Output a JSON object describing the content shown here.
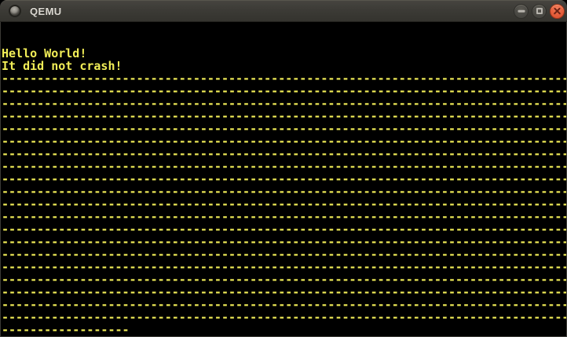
{
  "window": {
    "title": "QEMU",
    "controls": [
      {
        "name": "minimize",
        "icon": "minimize-icon"
      },
      {
        "name": "maximize",
        "icon": "maximize-icon"
      },
      {
        "name": "close",
        "icon": "close-icon"
      }
    ]
  },
  "colors": {
    "titlebar_bg": "#3b3a35",
    "titlebar_text": "#dbd8d1",
    "close_button_orange": "#e2583a",
    "button_gray": "#4a4944",
    "screen_bg": "#000000",
    "screen_text_yellow": "#f1ed57"
  },
  "screen": {
    "columns": 80,
    "rows": 25,
    "lines": [
      "",
      "",
      "Hello World!",
      "It did not crash!",
      "--------------------------------------------------------------------------------",
      "--------------------------------------------------------------------------------",
      "--------------------------------------------------------------------------------",
      "--------------------------------------------------------------------------------",
      "--------------------------------------------------------------------------------",
      "--------------------------------------------------------------------------------",
      "--------------------------------------------------------------------------------",
      "--------------------------------------------------------------------------------",
      "--------------------------------------------------------------------------------",
      "--------------------------------------------------------------------------------",
      "--------------------------------------------------------------------------------",
      "--------------------------------------------------------------------------------",
      "--------------------------------------------------------------------------------",
      "--------------------------------------------------------------------------------",
      "--------------------------------------------------------------------------------",
      "--------------------------------------------------------------------------------",
      "--------------------------------------------------------------------------------",
      "--------------------------------------------------------------------------------",
      "--------------------------------------------------------------------------------",
      "--------------------------------------------------------------------------------",
      "------------------"
    ]
  }
}
